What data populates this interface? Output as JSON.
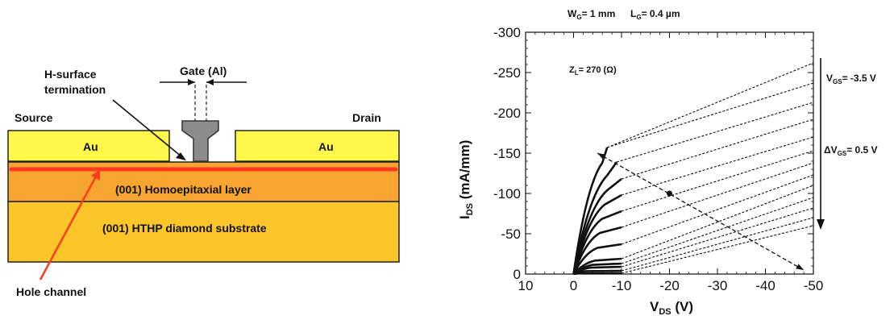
{
  "diagram": {
    "gate_label": "Gate (Al)",
    "h_surface_label_line1": "H-surface",
    "h_surface_label_line2": "termination",
    "source_label": "Source",
    "drain_label": "Drain",
    "source_metal_label": "Au",
    "drain_metal_label": "Au",
    "homoepitaxial_label": "(001) Homoepitaxial layer",
    "substrate_label": "(001) HTHP diamond substrate",
    "hole_channel_label": "Hole channel",
    "colors": {
      "metal": "#fff84a",
      "homoepitaxial": "#f7a531",
      "substrate": "#fcc52a",
      "channel": "#ff3b1f",
      "gate": "#8c8c8c"
    }
  },
  "chart_data": {
    "type": "line",
    "title_wg": {
      "sym": "W",
      "sub": "G",
      "rest": "= 1 mm"
    },
    "title_lg": {
      "sym": "L",
      "sub": "G",
      "rest": "= 0.4 µm"
    },
    "zl_annotation": {
      "sym": "Z",
      "sub": "L",
      "rest": "= 270 (Ω)"
    },
    "vgs_annotation": {
      "sym": "V",
      "sub": "GS",
      "rest": "= -3.5 V"
    },
    "dvgs_annotation": {
      "sym": "ΔV",
      "sub": "GS",
      "rest": "= 0.5 V"
    },
    "xlabel": {
      "sym": "V",
      "sub": "DS",
      "rest": " (V)"
    },
    "ylabel": {
      "sym": "I",
      "sub": "DS",
      "rest": " (mA/mm)"
    },
    "xlim": [
      10,
      -50
    ],
    "ylim": [
      0,
      -300
    ],
    "x_ticks": [
      "10",
      "0",
      "-10",
      "-20",
      "-30",
      "-40",
      "-50"
    ],
    "x_tick_values": [
      10,
      0,
      -10,
      -20,
      -30,
      -40,
      -50
    ],
    "y_ticks": [
      "0",
      "-50",
      "-100",
      "-150",
      "-200",
      "-250",
      "-300"
    ],
    "y_tick_values": [
      0,
      -50,
      -100,
      -150,
      -200,
      -250,
      -300
    ],
    "measured_curves": [
      {
        "knee": -1.5,
        "x_end": -10,
        "y_end": -1
      },
      {
        "knee": -2.5,
        "x_end": -10,
        "y_end": -4
      },
      {
        "knee": -3.5,
        "x_end": -10,
        "y_end": -9
      },
      {
        "knee": -4.0,
        "x_end": -10,
        "y_end": -13
      },
      {
        "knee": -4.5,
        "x_end": -10,
        "y_end": -19
      },
      {
        "knee": -5.0,
        "x_end": -10,
        "y_end": -37
      },
      {
        "knee": -5.5,
        "x_end": -10,
        "y_end": -58
      },
      {
        "knee": -6.0,
        "x_end": -10,
        "y_end": -78
      },
      {
        "knee": -6.5,
        "x_end": -10,
        "y_end": -98
      },
      {
        "knee": -7.0,
        "x_end": -10,
        "y_end": -118
      },
      {
        "knee": -7.0,
        "x_end": -9,
        "y_end": -139
      },
      {
        "knee": -6.0,
        "x_end": -7,
        "y_end": -157
      }
    ],
    "extrapolated_lines": [
      {
        "x0": -10,
        "y0": -1,
        "x1": -50,
        "y1": -60
      },
      {
        "x0": -10,
        "y0": -4,
        "x1": -50,
        "y1": -70
      },
      {
        "x0": -10,
        "y0": -9,
        "x1": -50,
        "y1": -82
      },
      {
        "x0": -10,
        "y0": -13,
        "x1": -50,
        "y1": -95
      },
      {
        "x0": -10,
        "y0": -19,
        "x1": -50,
        "y1": -110
      },
      {
        "x0": -10,
        "y0": -37,
        "x1": -50,
        "y1": -123
      },
      {
        "x0": -10,
        "y0": -58,
        "x1": -50,
        "y1": -138
      },
      {
        "x0": -10,
        "y0": -78,
        "x1": -50,
        "y1": -153
      },
      {
        "x0": -10,
        "y0": -98,
        "x1": -50,
        "y1": -170
      },
      {
        "x0": -10,
        "y0": -118,
        "x1": -50,
        "y1": -192
      },
      {
        "x0": -9,
        "y0": -139,
        "x1": -50,
        "y1": -213
      },
      {
        "x0": -7,
        "y0": -157,
        "x1": -50,
        "y1": -237
      },
      {
        "x0": -7,
        "y0": -157,
        "x1": -50,
        "y1": -262
      }
    ],
    "load_line": {
      "x0": -5,
      "y0": -150,
      "x1": -48,
      "y1": -5
    },
    "load_line_marker": {
      "x": -20,
      "y": -100
    }
  }
}
